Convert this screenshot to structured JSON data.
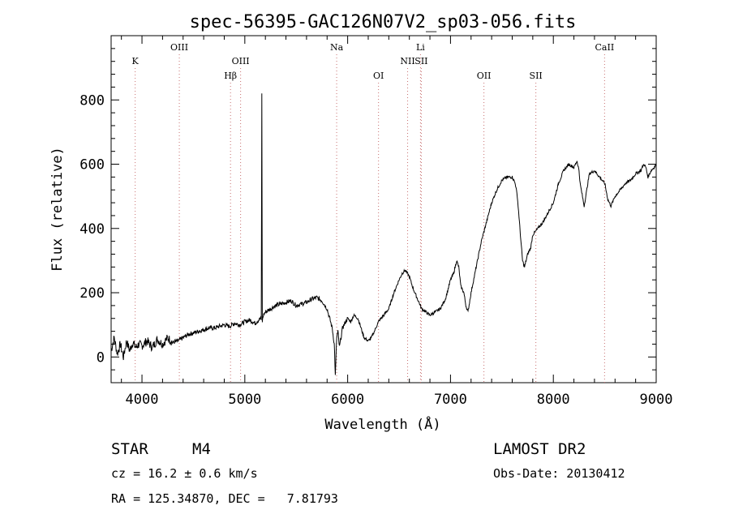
{
  "chart_data": {
    "type": "line",
    "title": "spec-56395-GAC126N07V2_sp03-056.fits",
    "xlabel": "Wavelength (Å)",
    "ylabel": "Flux (relative)",
    "xlim": [
      3700,
      9000
    ],
    "ylim": [
      -80,
      1000
    ],
    "x_ticks": [
      4000,
      5000,
      6000,
      7000,
      8000,
      9000
    ],
    "y_ticks": [
      0,
      200,
      400,
      600,
      800
    ],
    "grid": false,
    "line_color": "#000000",
    "marker_color": "#c87070",
    "spectral_lines": [
      {
        "name": "K",
        "wavelength": 3934,
        "row": "lower"
      },
      {
        "name": "OIII",
        "wavelength": 4363,
        "row": "upper"
      },
      {
        "name": "Hβ",
        "wavelength": 4861,
        "row": "bottom"
      },
      {
        "name": "OIII",
        "wavelength": 4959,
        "row": "lower"
      },
      {
        "name": "Na",
        "wavelength": 5893,
        "row": "upper"
      },
      {
        "name": "OI",
        "wavelength": 6300,
        "row": "bottom"
      },
      {
        "name": "NII",
        "wavelength": 6583,
        "row": "lower"
      },
      {
        "name": "Li",
        "wavelength": 6708,
        "row": "upper"
      },
      {
        "name": "SII",
        "wavelength": 6716,
        "row": "lower"
      },
      {
        "name": "OII",
        "wavelength": 7325,
        "row": "bottom"
      },
      {
        "name": "SII",
        "wavelength": 7830,
        "row": "bottom"
      },
      {
        "name": "CaII",
        "wavelength": 8498,
        "row": "upper"
      }
    ],
    "series": [
      {
        "x": [
          3700,
          3730,
          3760,
          3790,
          3820,
          3850,
          3880,
          3910,
          3940,
          3970,
          4000,
          4050,
          4100,
          4150,
          4200,
          4250,
          4300,
          4350,
          4400,
          4450,
          4500,
          4550,
          4600,
          4650,
          4700,
          4750,
          4800,
          4850,
          4900,
          4950,
          5000,
          5050,
          5100,
          5150,
          5160,
          5165,
          5170,
          5180,
          5200,
          5250,
          5300,
          5350,
          5400,
          5450,
          5500,
          5550,
          5600,
          5650,
          5700,
          5750,
          5800,
          5850,
          5870,
          5880,
          5893,
          5905,
          5920,
          5950,
          5980,
          6000,
          6030,
          6060,
          6100,
          6130,
          6160,
          6200,
          6230,
          6260,
          6300,
          6350,
          6400,
          6450,
          6500,
          6530,
          6560,
          6600,
          6640,
          6680,
          6720,
          6760,
          6800,
          6850,
          6900,
          6950,
          7000,
          7030,
          7060,
          7080,
          7100,
          7130,
          7150,
          7170,
          7200,
          7250,
          7300,
          7350,
          7400,
          7450,
          7500,
          7550,
          7600,
          7630,
          7650,
          7670,
          7680,
          7700,
          7720,
          7750,
          7780,
          7800,
          7850,
          7900,
          7950,
          8000,
          8050,
          8100,
          8150,
          8200,
          8230,
          8250,
          8260,
          8300,
          8350,
          8400,
          8450,
          8500,
          8530,
          8560,
          8600,
          8650,
          8700,
          8750,
          8800,
          8850,
          8880,
          8900,
          8920,
          8950,
          8980,
          9000
        ],
        "y": [
          20,
          60,
          10,
          40,
          0,
          50,
          20,
          45,
          30,
          40,
          35,
          50,
          30,
          55,
          40,
          60,
          45,
          50,
          60,
          70,
          75,
          80,
          85,
          90,
          90,
          95,
          100,
          95,
          105,
          100,
          110,
          115,
          105,
          120,
          115,
          820,
          110,
          130,
          140,
          150,
          160,
          165,
          170,
          175,
          160,
          165,
          170,
          180,
          185,
          175,
          150,
          90,
          40,
          -60,
          60,
          80,
          30,
          90,
          110,
          120,
          110,
          130,
          120,
          90,
          60,
          50,
          60,
          80,
          110,
          130,
          150,
          200,
          240,
          260,
          270,
          250,
          210,
          180,
          150,
          140,
          130,
          140,
          150,
          180,
          240,
          260,
          300,
          280,
          220,
          200,
          160,
          140,
          200,
          280,
          360,
          420,
          480,
          520,
          550,
          560,
          560,
          540,
          500,
          420,
          380,
          300,
          280,
          320,
          340,
          380,
          400,
          420,
          450,
          480,
          540,
          580,
          600,
          590,
          610,
          580,
          540,
          470,
          570,
          580,
          560,
          540,
          490,
          470,
          500,
          520,
          540,
          550,
          570,
          580,
          600,
          590,
          560,
          580,
          590,
          600
        ]
      }
    ]
  },
  "info": {
    "object_class": "STAR",
    "subclass": "M4",
    "survey": "LAMOST DR2",
    "cz": "cz = 16.2 ± 0.6 km/s",
    "obs_date": "Obs-Date: 20130412",
    "coords": "RA = 125.34870, DEC =   7.81793"
  }
}
